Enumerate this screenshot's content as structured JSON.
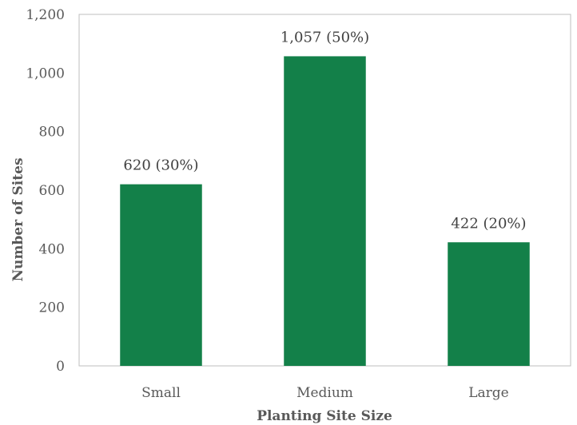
{
  "chart_data": {
    "type": "bar",
    "title": "",
    "xlabel": "Planting Site Size",
    "ylabel": "Number of Sites",
    "categories": [
      "Small",
      "Medium",
      "Large"
    ],
    "values": [
      620,
      1057,
      422
    ],
    "data_labels": [
      "620 (30%)",
      "1,057 (50%)",
      "422 (20%)"
    ],
    "ylim": [
      0,
      1200
    ],
    "yticks": [
      0,
      200,
      400,
      600,
      800,
      1000,
      1200
    ],
    "ytick_labels": [
      "0",
      "200",
      "400",
      "600",
      "800",
      "1,000",
      "1,200"
    ],
    "grid": false,
    "legend": "none",
    "bar_color": "#138049",
    "axis_color": "#bfbfbf"
  }
}
